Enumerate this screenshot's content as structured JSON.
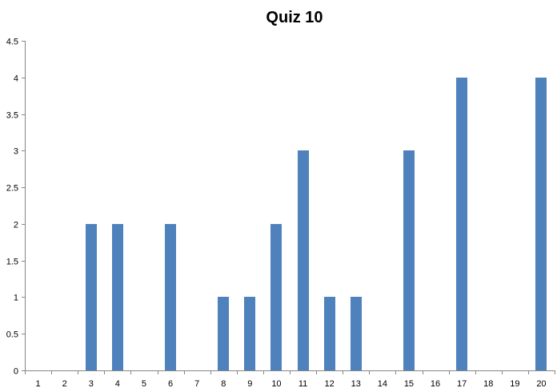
{
  "chart_data": {
    "type": "bar",
    "title": "Quiz 10",
    "xlabel": "",
    "ylabel": "",
    "categories": [
      "1",
      "2",
      "3",
      "4",
      "5",
      "6",
      "7",
      "8",
      "9",
      "10",
      "11",
      "12",
      "13",
      "14",
      "15",
      "16",
      "17",
      "18",
      "19",
      "20"
    ],
    "values": [
      0,
      0,
      2,
      2,
      0,
      2,
      0,
      1,
      1,
      2,
      3,
      1,
      1,
      0,
      3,
      0,
      4,
      0,
      0,
      4
    ],
    "ylim": [
      0,
      4.5
    ],
    "yticks": [
      "0",
      "0.5",
      "1",
      "1.5",
      "2",
      "2.5",
      "3",
      "3.5",
      "4",
      "4.5"
    ],
    "grid": false,
    "legend": "none",
    "bar_color": "#4F81BD"
  }
}
